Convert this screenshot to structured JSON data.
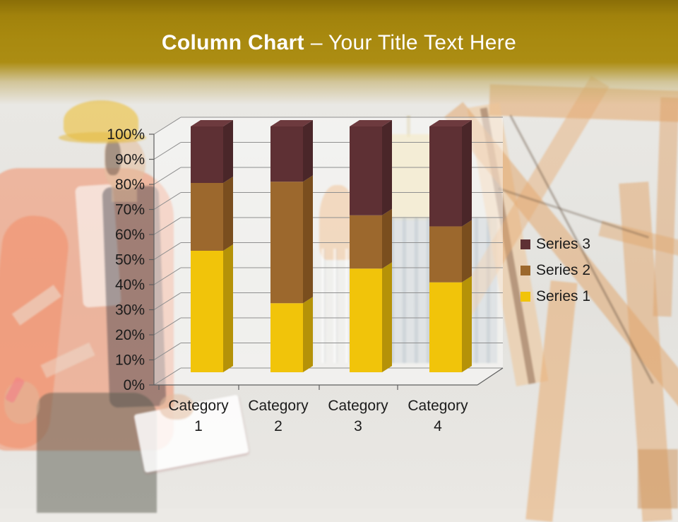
{
  "header": {
    "title_bold": "Column Chart",
    "title_rest": "– Your Title Text Here",
    "band_color": "#A8890F",
    "title_color": "#FFFFFF"
  },
  "chart_data": {
    "type": "bar",
    "subtype": "3d-column-100-percent-stacked",
    "title": "",
    "xlabel": "",
    "ylabel": "",
    "categories": [
      "Category 1",
      "Category 2",
      "Category 3",
      "Category 4"
    ],
    "series": [
      {
        "name": "Series 1",
        "values": [
          4.3,
          2.5,
          3.5,
          4.5
        ],
        "color": "#F1C40A",
        "side_color": "#B59208",
        "top_color": "#F4D03F"
      },
      {
        "name": "Series 2",
        "values": [
          2.4,
          4.4,
          1.8,
          2.8
        ],
        "color": "#9C682D",
        "side_color": "#7A4E1E",
        "top_color": "#B07A38"
      },
      {
        "name": "Series 3",
        "values": [
          2.0,
          2.0,
          3.0,
          5.0
        ],
        "color": "#5E3034",
        "side_color": "#4A2629",
        "top_color": "#6D3A3E"
      }
    ],
    "stacked_percentages": {
      "Category 1": [
        49.4,
        27.6,
        23.0
      ],
      "Category 2": [
        28.1,
        49.4,
        22.5
      ],
      "Category 3": [
        42.2,
        21.7,
        36.1
      ],
      "Category 4": [
        36.6,
        22.8,
        40.7
      ]
    },
    "ylim": [
      0,
      100
    ],
    "yticks": [
      "0%",
      "10%",
      "20%",
      "30%",
      "40%",
      "50%",
      "60%",
      "70%",
      "80%",
      "90%",
      "100%"
    ],
    "grid": true,
    "grid_color": "#8F8F8F",
    "axis_color": "#5F5F5F",
    "text_color": "#1B1B1B",
    "legend_position": "right",
    "legend_order": [
      "Series 3",
      "Series 2",
      "Series 1"
    ]
  }
}
